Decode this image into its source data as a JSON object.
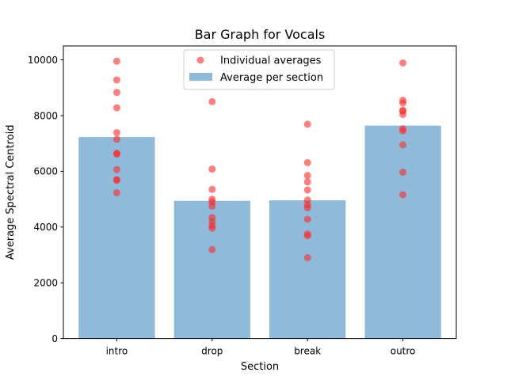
{
  "chart_data": {
    "type": "bar",
    "title": "Bar Graph for Vocals",
    "xlabel": "Section",
    "ylabel": "Average Spectral Centroid",
    "categories": [
      "intro",
      "drop",
      "break",
      "outro"
    ],
    "values": [
      7230,
      4940,
      4960,
      7640
    ],
    "ylim": [
      0,
      10500
    ],
    "yticks": [
      0,
      2000,
      4000,
      6000,
      8000,
      10000
    ],
    "ytick_labels": [
      "0",
      "2000",
      "4000",
      "6000",
      "8000",
      "10000"
    ],
    "bar_color": "#8fbada",
    "point_color": "#ff2a2a",
    "legend": {
      "position": "top-center",
      "entries": [
        {
          "label": "Individual averages",
          "marker": "circle",
          "color": "#ff2a2a"
        },
        {
          "label": "Average per section",
          "marker": "patch",
          "color": "#8fbada"
        }
      ]
    },
    "points": [
      {
        "category": "intro",
        "values": [
          9950,
          9280,
          8830,
          8280,
          7390,
          7150,
          6650,
          6620,
          6060,
          5700,
          5680,
          5230
        ]
      },
      {
        "category": "drop",
        "values": [
          8500,
          6080,
          5350,
          5000,
          4900,
          4750,
          4340,
          4200,
          4050,
          3960,
          3190
        ]
      },
      {
        "category": "break",
        "values": [
          7690,
          6310,
          5850,
          5620,
          5330,
          4970,
          4800,
          4690,
          4280,
          3750,
          3690,
          2900
        ]
      },
      {
        "category": "outro",
        "values": [
          9890,
          8550,
          8450,
          8190,
          8160,
          8040,
          7530,
          7450,
          6950,
          5970,
          5160
        ]
      }
    ]
  }
}
